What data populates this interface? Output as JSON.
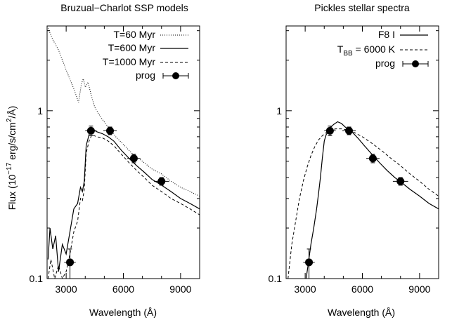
{
  "figure": {
    "ylabel_prefix": "Flux (10",
    "ylabel_exp": "−17",
    "ylabel_mid": " erg/s/cm",
    "ylabel_exp2": "2",
    "ylabel_suffix": "/Å)"
  },
  "chart_data": [
    {
      "type": "line",
      "title": "Bruzual−Charlot SSP models",
      "xlabel": "Wavelength (Å)",
      "ylabel": "Flux (10^-17 erg/s/cm^2/Å)",
      "xlim": [
        2000,
        10000
      ],
      "ylim": [
        0.1,
        3.2
      ],
      "yscale": "log",
      "xticks": [
        3000,
        6000,
        9000
      ],
      "xtick_labels": [
        "3000",
        "6000",
        "9000"
      ],
      "yticks": [
        0.1,
        1
      ],
      "ytick_labels": [
        "0.1",
        "1"
      ],
      "legend_position": "top-right",
      "series": [
        {
          "name": "T=60 Myr",
          "style": "dotted",
          "color": "#000000",
          "x": [
            2050,
            2300,
            2600,
            3000,
            3400,
            3650,
            3800,
            3900,
            4000,
            4150,
            4300,
            4500,
            4800,
            5200,
            5600,
            6000,
            6500,
            7000,
            7500,
            8000,
            8500,
            9000,
            9500,
            10000
          ],
          "y": [
            3.1,
            2.65,
            2.3,
            1.75,
            1.35,
            1.12,
            1.45,
            1.55,
            1.38,
            1.48,
            1.25,
            1.05,
            0.92,
            0.8,
            0.7,
            0.63,
            0.55,
            0.5,
            0.45,
            0.42,
            0.38,
            0.35,
            0.33,
            0.31
          ]
        },
        {
          "name": "T=600 Myr",
          "style": "solid",
          "color": "#000000",
          "x": [
            2050,
            2150,
            2300,
            2450,
            2600,
            2800,
            3000,
            3200,
            3400,
            3600,
            3750,
            3850,
            3950,
            4050,
            4200,
            4350,
            4600,
            4900,
            5200,
            5500,
            5900,
            6300,
            6700,
            7100,
            7500,
            8000,
            8500,
            9000,
            9500,
            10000
          ],
          "y": [
            0.13,
            0.2,
            0.15,
            0.18,
            0.11,
            0.16,
            0.14,
            0.19,
            0.26,
            0.28,
            0.35,
            0.33,
            0.38,
            0.62,
            0.72,
            0.78,
            0.75,
            0.73,
            0.7,
            0.66,
            0.58,
            0.52,
            0.47,
            0.43,
            0.39,
            0.36,
            0.33,
            0.3,
            0.28,
            0.26
          ]
        },
        {
          "name": "T=1000 Myr",
          "style": "dashed",
          "color": "#000000",
          "x": [
            2050,
            2200,
            2400,
            2600,
            2800,
            3000,
            3200,
            3400,
            3600,
            3750,
            3850,
            3950,
            4050,
            4200,
            4350,
            4600,
            4900,
            5200,
            5500,
            5900,
            6300,
            6700,
            7100,
            7500,
            8000,
            8500,
            9000,
            9500,
            10000
          ],
          "y": [
            0.1,
            0.13,
            0.1,
            0.12,
            0.1,
            0.11,
            0.14,
            0.19,
            0.22,
            0.3,
            0.29,
            0.34,
            0.56,
            0.66,
            0.72,
            0.7,
            0.69,
            0.66,
            0.62,
            0.55,
            0.49,
            0.44,
            0.4,
            0.36,
            0.33,
            0.3,
            0.28,
            0.26,
            0.24
          ]
        }
      ],
      "points": {
        "name": "prog",
        "x": [
          3200,
          4300,
          5300,
          6550,
          8000
        ],
        "y": [
          0.125,
          0.76,
          0.76,
          0.52,
          0.38
        ],
        "yerr_low": [
          0.025,
          0.05,
          0.04,
          0.03,
          0.02
        ],
        "yerr_high": [
          0.025,
          0.05,
          0.04,
          0.03,
          0.02
        ],
        "xerr": [
          300,
          300,
          350,
          350,
          400
        ]
      }
    },
    {
      "type": "line",
      "title": "Pickles stellar spectra",
      "xlabel": "Wavelength (Å)",
      "ylabel": "",
      "xlim": [
        2000,
        10000
      ],
      "ylim": [
        0.1,
        3.2
      ],
      "yscale": "log",
      "xticks": [
        3000,
        6000,
        9000
      ],
      "xtick_labels": [
        "3000",
        "6000",
        "9000"
      ],
      "yticks": [
        0.1,
        1
      ],
      "ytick_labels": [
        "0.1",
        "1"
      ],
      "legend_position": "top-right",
      "series": [
        {
          "name": "F8 I",
          "style": "solid",
          "color": "#000000",
          "x": [
            3050,
            3150,
            3300,
            3450,
            3600,
            3700,
            3800,
            3900,
            4000,
            4100,
            4200,
            4350,
            4500,
            4700,
            4900,
            5100,
            5300,
            5500,
            5800,
            6100,
            6500,
            6900,
            7300,
            7700,
            8100,
            8500,
            9000,
            9500,
            10000
          ],
          "y": [
            0.1,
            0.12,
            0.16,
            0.2,
            0.26,
            0.32,
            0.4,
            0.52,
            0.66,
            0.72,
            0.75,
            0.8,
            0.83,
            0.86,
            0.84,
            0.8,
            0.77,
            0.74,
            0.68,
            0.62,
            0.55,
            0.49,
            0.44,
            0.4,
            0.37,
            0.34,
            0.31,
            0.28,
            0.26
          ]
        },
        {
          "name": "T_BB = 6000 K",
          "style": "dashed",
          "color": "#000000",
          "x": [
            2100,
            2300,
            2500,
            2700,
            2900,
            3100,
            3300,
            3500,
            3700,
            3900,
            4100,
            4300,
            4600,
            4900,
            5200,
            5500,
            6000,
            6500,
            7000,
            7500,
            8000,
            8500,
            9000,
            9500,
            10000
          ],
          "y": [
            0.1,
            0.16,
            0.22,
            0.3,
            0.38,
            0.46,
            0.54,
            0.61,
            0.67,
            0.71,
            0.74,
            0.76,
            0.78,
            0.78,
            0.77,
            0.75,
            0.7,
            0.64,
            0.58,
            0.52,
            0.47,
            0.42,
            0.38,
            0.34,
            0.31
          ]
        }
      ],
      "points": {
        "name": "prog",
        "x": [
          3200,
          4300,
          5300,
          6550,
          8000
        ],
        "y": [
          0.125,
          0.76,
          0.76,
          0.52,
          0.38
        ],
        "yerr_low": [
          0.025,
          0.05,
          0.04,
          0.03,
          0.02
        ],
        "yerr_high": [
          0.025,
          0.05,
          0.04,
          0.03,
          0.02
        ],
        "xerr": [
          300,
          300,
          350,
          350,
          400
        ]
      }
    }
  ],
  "legend_right_bb": {
    "prefix": "T",
    "sub": "BB",
    "suffix": " = 6000 K"
  }
}
